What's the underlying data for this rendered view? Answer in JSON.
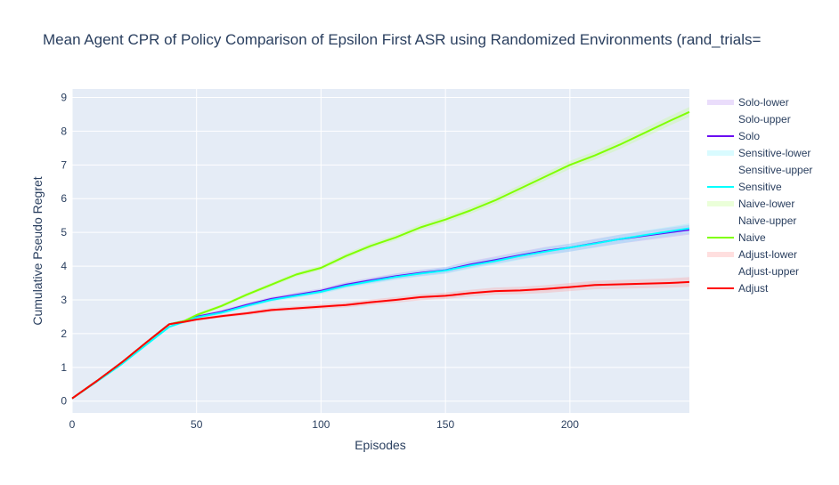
{
  "chart_data": {
    "type": "line",
    "title": "Mean Agent CPR of Policy Comparison of Epsilon First ASR using Randomized Environments (rand_trials=",
    "xlabel": "Episodes",
    "ylabel": "Cumulative Pseudo Regret",
    "xlim": [
      0,
      248
    ],
    "ylim": [
      -0.35,
      9.25
    ],
    "xticks": [
      0,
      50,
      100,
      150,
      200
    ],
    "yticks": [
      0,
      1,
      2,
      3,
      4,
      5,
      6,
      7,
      8,
      9
    ],
    "grid": true,
    "legend_position": "right",
    "x": [
      0,
      10,
      20,
      30,
      39,
      45,
      50,
      60,
      70,
      80,
      90,
      100,
      110,
      120,
      130,
      140,
      150,
      160,
      170,
      180,
      190,
      200,
      210,
      220,
      230,
      240,
      248
    ],
    "series": [
      {
        "name": "Solo",
        "color": "#6a0df2",
        "band_color": "rgba(170,120,240,0.25)",
        "values": [
          0.08,
          0.6,
          1.15,
          1.75,
          2.28,
          2.37,
          2.5,
          2.65,
          2.85,
          3.03,
          3.15,
          3.27,
          3.45,
          3.58,
          3.7,
          3.8,
          3.88,
          4.05,
          4.18,
          4.32,
          4.45,
          4.55,
          4.68,
          4.8,
          4.9,
          5.0,
          5.08
        ]
      },
      {
        "name": "Sensitive",
        "color": "#00ffff",
        "band_color": "rgba(120,240,255,0.28)",
        "values": [
          0.08,
          0.58,
          1.1,
          1.68,
          2.2,
          2.35,
          2.48,
          2.62,
          2.82,
          3.0,
          3.12,
          3.24,
          3.42,
          3.55,
          3.68,
          3.78,
          3.87,
          4.02,
          4.15,
          4.3,
          4.43,
          4.55,
          4.67,
          4.8,
          4.92,
          5.03,
          5.12
        ]
      },
      {
        "name": "Naive",
        "color": "#7fff00",
        "band_color": "rgba(190,255,130,0.3)",
        "values": [
          0.08,
          0.6,
          1.15,
          1.75,
          2.28,
          2.37,
          2.55,
          2.82,
          3.15,
          3.45,
          3.75,
          3.95,
          4.3,
          4.6,
          4.85,
          5.15,
          5.38,
          5.65,
          5.95,
          6.3,
          6.65,
          7.0,
          7.28,
          7.6,
          7.95,
          8.3,
          8.57
        ]
      },
      {
        "name": "Adjust",
        "color": "#ff0000",
        "band_color": "rgba(255,150,150,0.3)",
        "values": [
          0.08,
          0.6,
          1.15,
          1.75,
          2.28,
          2.35,
          2.42,
          2.52,
          2.6,
          2.7,
          2.75,
          2.8,
          2.85,
          2.93,
          3.0,
          3.08,
          3.12,
          3.2,
          3.26,
          3.28,
          3.32,
          3.38,
          3.44,
          3.46,
          3.48,
          3.5,
          3.53
        ]
      }
    ],
    "legend": [
      "Solo-lower",
      "Solo-upper",
      "Solo",
      "Sensitive-lower",
      "Sensitive-upper",
      "Sensitive",
      "Naive-lower",
      "Naive-upper",
      "Naive",
      "Adjust-lower",
      "Adjust-upper",
      "Adjust"
    ]
  }
}
